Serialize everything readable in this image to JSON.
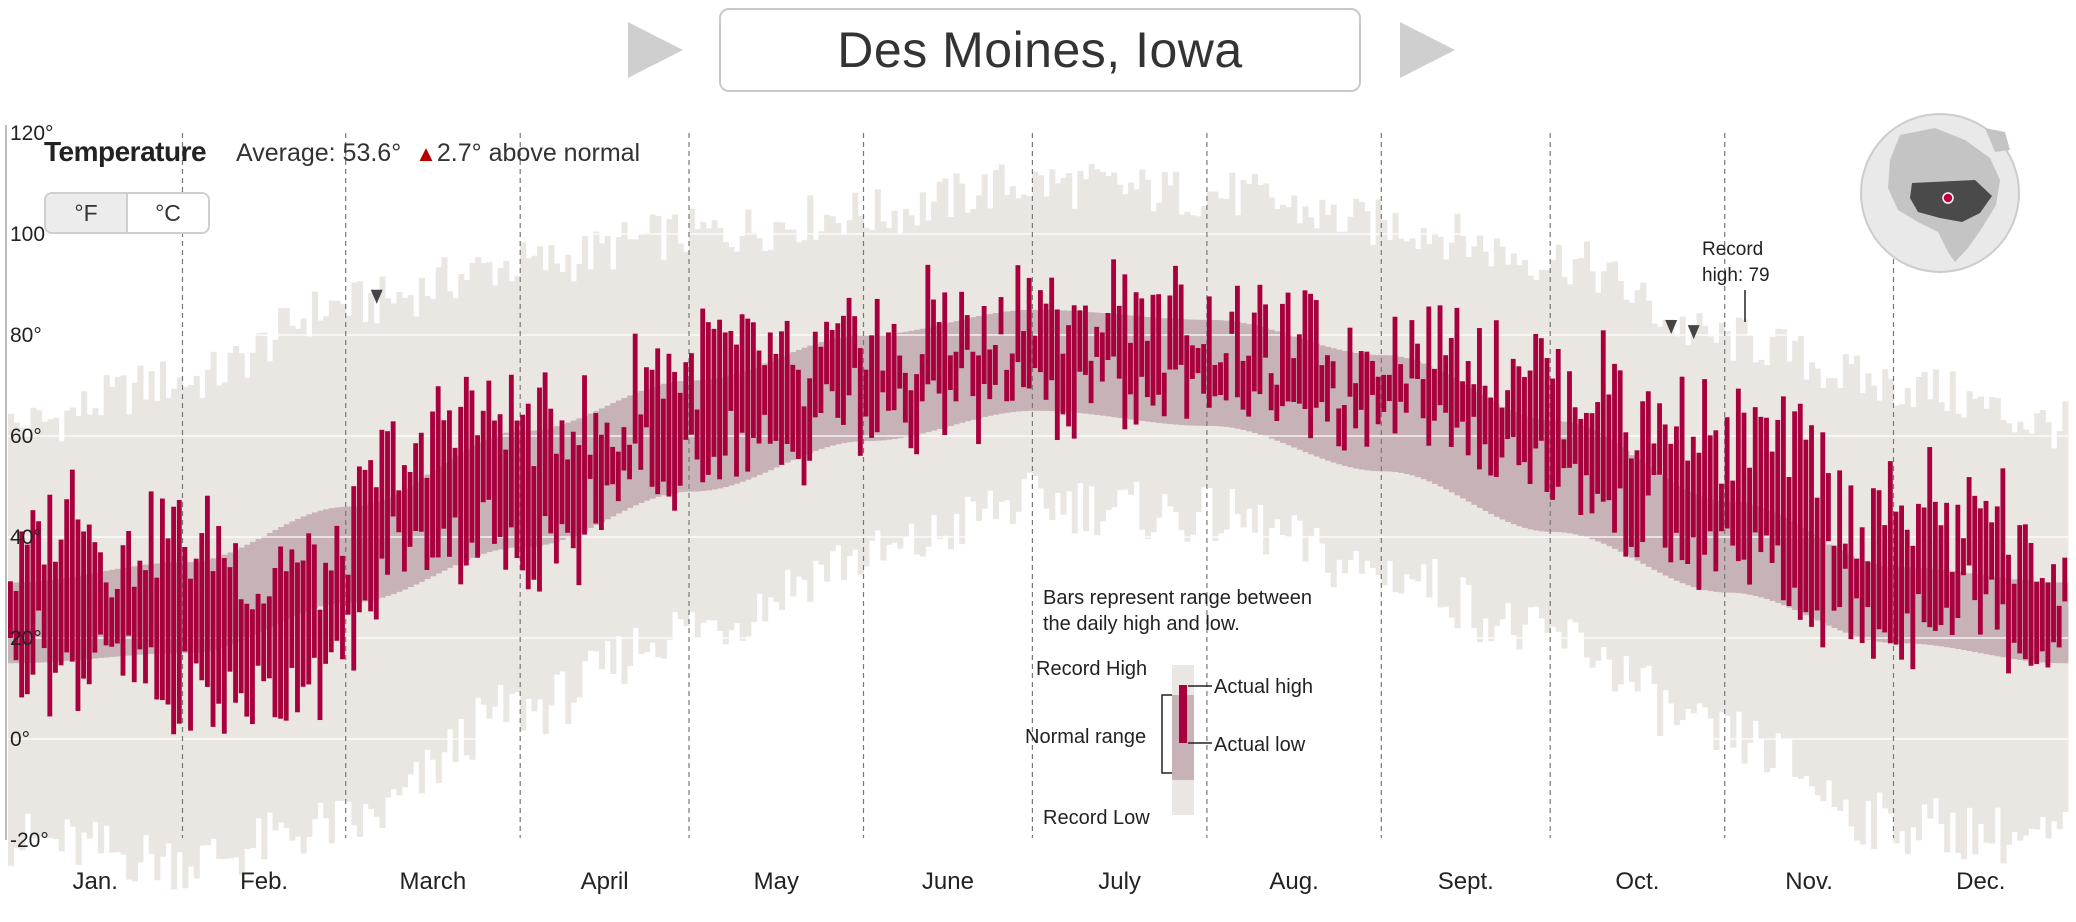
{
  "header": {
    "city": "Des Moines, Iowa",
    "prev_label": "previous city",
    "next_label": "next city"
  },
  "summary": {
    "title": "Temperature",
    "average_label": "Average: 53.6°",
    "delta": "2.7°",
    "delta_suffix": "above normal",
    "delta_color": "#b80000"
  },
  "units": {
    "fahrenheit": "°F",
    "celsius": "°C",
    "selected": "°F"
  },
  "colors": {
    "actual": "#a8003d",
    "normal": "#c7b3b7",
    "record": "#eae7e2",
    "grid": "#ffffff"
  },
  "annotations": {
    "record_high_line1": "Record",
    "record_high_line2": "high: 79"
  },
  "legend": {
    "line1": "Bars represent range between",
    "line2": "the daily high and low.",
    "record_high": "Record High",
    "normal_range": "Normal range",
    "record_low": "Record Low",
    "actual_high": "Actual high",
    "actual_low": "Actual low"
  },
  "chart_data": {
    "type": "bar",
    "title": "Temperature",
    "y_unit": "°F",
    "ylim": [
      -20,
      120
    ],
    "yticks": [
      -20,
      0,
      20,
      40,
      60,
      80,
      100,
      120
    ],
    "ytick_labels": [
      "-20°",
      "0°",
      "20°",
      "40°",
      "60°",
      "80°",
      "100",
      "120°"
    ],
    "months": [
      "Jan.",
      "Feb.",
      "March",
      "April",
      "May",
      "June",
      "July",
      "Aug.",
      "Sept.",
      "Oct.",
      "Nov.",
      "Dec."
    ],
    "days_in_month": [
      31,
      29,
      31,
      30,
      31,
      30,
      31,
      31,
      30,
      31,
      30,
      31
    ],
    "normal": {
      "day": [
        1,
        32,
        61,
        92,
        122,
        153,
        183,
        214,
        245,
        275,
        306,
        336,
        366
      ],
      "low": [
        15,
        17,
        27,
        38,
        49,
        59,
        65,
        62,
        53,
        41,
        29,
        19,
        15
      ],
      "high": [
        31,
        35,
        46,
        61,
        71,
        80,
        85,
        83,
        76,
        63,
        47,
        34,
        31
      ]
    },
    "record": {
      "day": [
        1,
        32,
        61,
        92,
        122,
        153,
        183,
        214,
        245,
        275,
        306,
        336,
        366
      ],
      "low": [
        -20,
        -24,
        -17,
        6,
        22,
        36,
        47,
        44,
        33,
        20,
        0,
        -17,
        -20
      ],
      "high": [
        62,
        71,
        86,
        94,
        100,
        104,
        110,
        108,
        102,
        95,
        79,
        70,
        62
      ]
    },
    "actual_anchor_days": [
      1,
      10,
      20,
      32,
      45,
      58,
      70,
      85,
      100,
      115,
      130,
      145,
      160,
      175,
      190,
      205,
      220,
      235,
      250,
      265,
      280,
      290,
      300,
      310,
      320,
      335,
      350,
      366
    ],
    "actual_anchor_high": [
      38,
      48,
      40,
      36,
      30,
      35,
      58,
      62,
      60,
      68,
      75,
      72,
      80,
      84,
      84,
      83,
      82,
      78,
      84,
      72,
      68,
      68,
      65,
      56,
      52,
      45,
      45,
      35
    ],
    "actual_anchor_low": [
      10,
      18,
      18,
      8,
      5,
      12,
      35,
      38,
      40,
      52,
      58,
      60,
      66,
      68,
      68,
      68,
      70,
      62,
      66,
      56,
      52,
      42,
      38,
      34,
      30,
      25,
      24,
      20
    ],
    "year_average": 53.6,
    "above_normal": 2.7,
    "record_high_markers": [
      {
        "day": 66,
        "value": 85
      },
      {
        "day": 296,
        "value": 79
      },
      {
        "day": 300,
        "value": 78
      }
    ]
  }
}
